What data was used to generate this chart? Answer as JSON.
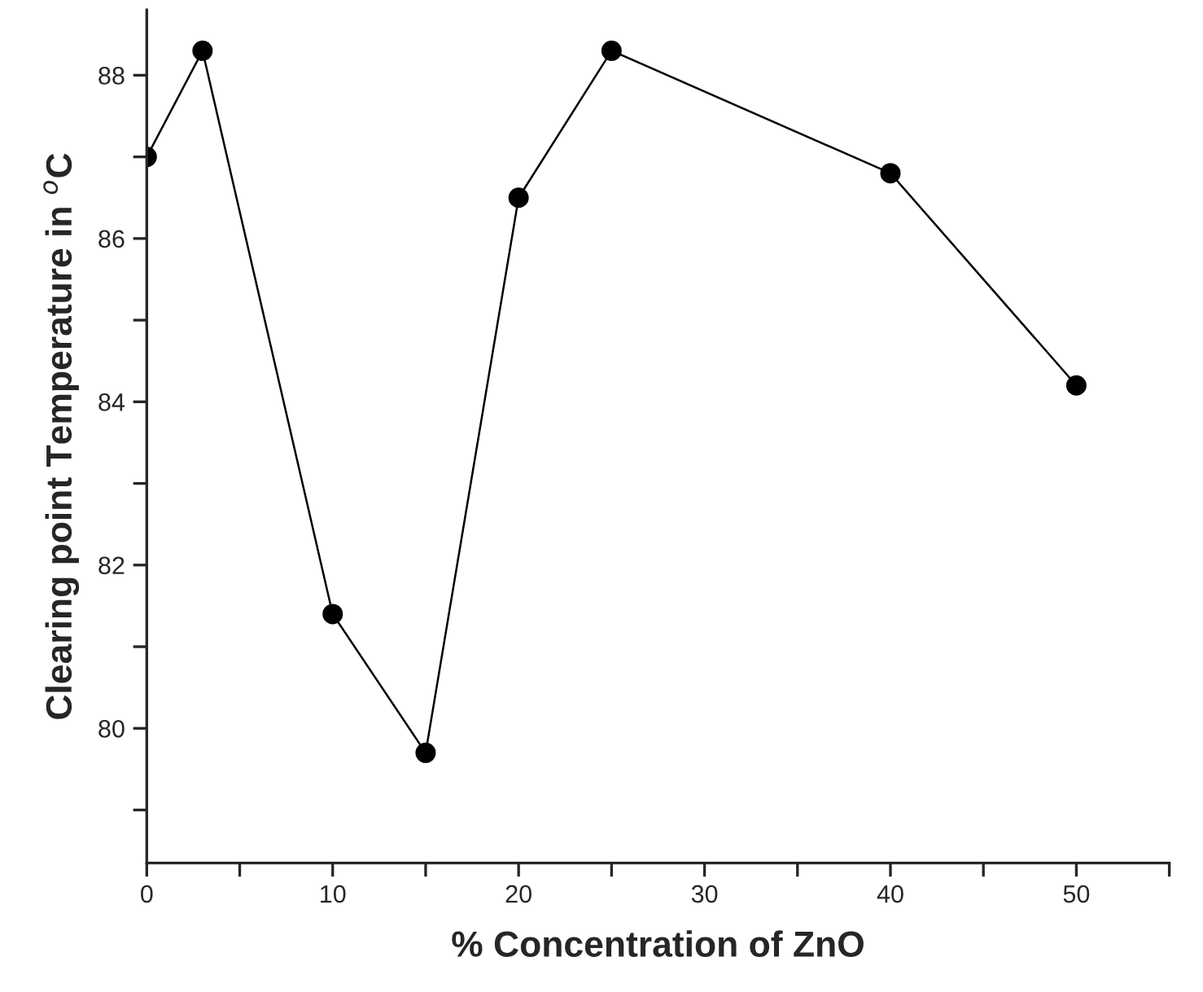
{
  "chart_data": {
    "type": "line",
    "xlabel": "% Concentration of ZnO",
    "ylabel": "Clearing point Temperature in $^{o}$C",
    "x": [
      0,
      3,
      10,
      15,
      20,
      25,
      40,
      50
    ],
    "series": [
      {
        "color": "#000000",
        "values": [
          87.0,
          88.3,
          81.4,
          79.7,
          86.5,
          88.3,
          86.8,
          84.2
        ]
      }
    ],
    "xlim": [
      0,
      55
    ],
    "xticks": [
      0,
      {
        "value": 5,
        "label": null
      },
      10,
      {
        "value": 15,
        "label": null
      },
      20,
      {
        "value": 25,
        "label": null
      },
      30,
      {
        "value": 35,
        "label": null
      },
      40,
      {
        "value": 45,
        "label": null
      },
      50,
      {
        "value": 55,
        "label": null
      }
    ],
    "ylim": [
      78.35,
      88.8
    ],
    "yticks": [
      {
        "value": 79,
        "label": null
      },
      80,
      {
        "value": 81,
        "label": null
      },
      82,
      {
        "value": 83,
        "label": null
      },
      84,
      {
        "value": 85,
        "label": null
      },
      86,
      {
        "value": 87,
        "label": null
      },
      88
    ],
    "grid": false,
    "legend": false,
    "marker": "circle",
    "line_style": "solid"
  }
}
